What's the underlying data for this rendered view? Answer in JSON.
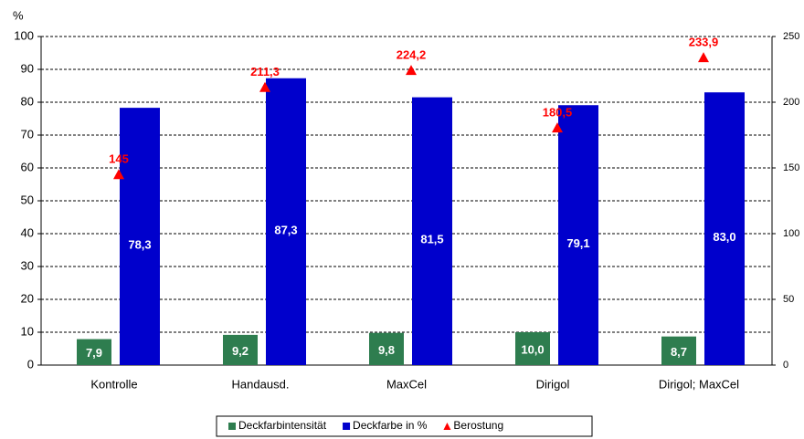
{
  "chart_data": {
    "type": "bar",
    "y_label": "%",
    "categories": [
      "Kontrolle",
      "Handausd.",
      "MaxCel",
      "Dirigol",
      "Dirigol; MaxCel"
    ],
    "series": [
      {
        "name": "Deckfarbintensität",
        "color": "#2e7d4f",
        "values": [
          7.9,
          9.2,
          9.8,
          10.0,
          8.7
        ],
        "value_labels": [
          "7,9",
          "9,2",
          "9,8",
          "10,0",
          "8,7"
        ]
      },
      {
        "name": "Deckfarbe in %",
        "color": "#0000cc",
        "values": [
          78.3,
          87.3,
          81.5,
          79.1,
          83.0
        ],
        "value_labels": [
          "78,3",
          "87,3",
          "81,5",
          "79,1",
          "83,0"
        ]
      },
      {
        "name": "Berostung",
        "color": "#ff0000",
        "axis": "y2",
        "marker": "triangle",
        "values": [
          145,
          211.3,
          224.2,
          180.5,
          233.9
        ],
        "value_labels": [
          "145",
          "211,3",
          "224,2",
          "180,5",
          "233,9"
        ]
      }
    ],
    "ylim": [
      0,
      100
    ],
    "yticks": [
      0,
      10,
      20,
      30,
      40,
      50,
      60,
      70,
      80,
      90,
      100
    ],
    "y2lim": [
      0,
      250
    ],
    "y2ticks": [
      0,
      50,
      100,
      150,
      200,
      250
    ],
    "grid": true,
    "legend": "bottom"
  }
}
